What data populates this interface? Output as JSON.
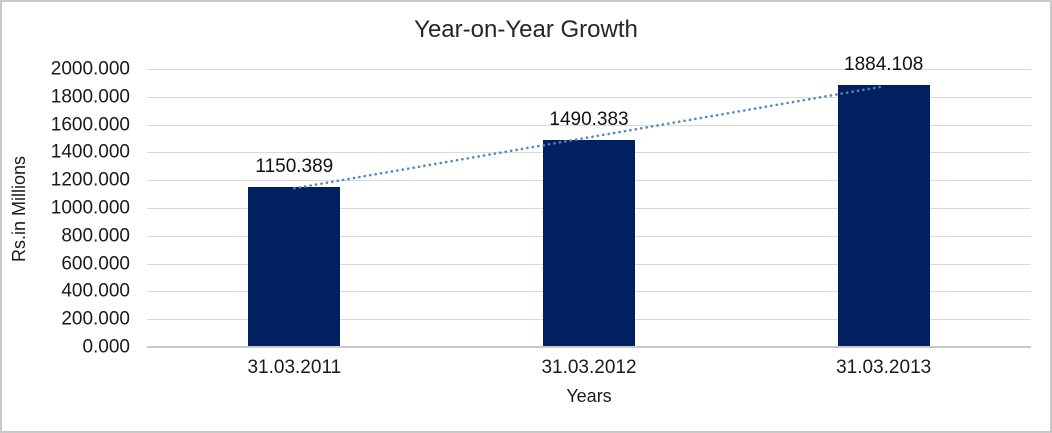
{
  "frame": {
    "background": "#ffffff",
    "border_color": "#c9c9c9"
  },
  "chart_data": {
    "type": "bar",
    "title": "Year-on-Year Growth",
    "categories": [
      "31.03.2011",
      "31.03.2012",
      "31.03.2013"
    ],
    "values": [
      1150.389,
      1490.383,
      1884.108
    ],
    "data_labels": [
      "1150.389",
      "1490.383",
      "1884.108"
    ],
    "xlabel": "Years",
    "ylabel": "Rs.in Millions",
    "ylim": [
      0,
      2000
    ],
    "ytick_step": 200,
    "ytick_labels": [
      "2000.000",
      "1800.000",
      "1600.000",
      "1400.000",
      "1200.000",
      "1000.000",
      "800.000",
      "600.000",
      "400.000",
      "200.000",
      "0.000"
    ],
    "grid": true,
    "legend_position": "none",
    "bar_color": "#002060",
    "gridline_color": "#d9d9d9",
    "axis_line_color": "#c9c9c9",
    "text_color": "#1a1a1a",
    "trendline": {
      "type": "linear",
      "style": "dotted",
      "color": "#4e86c8"
    }
  }
}
